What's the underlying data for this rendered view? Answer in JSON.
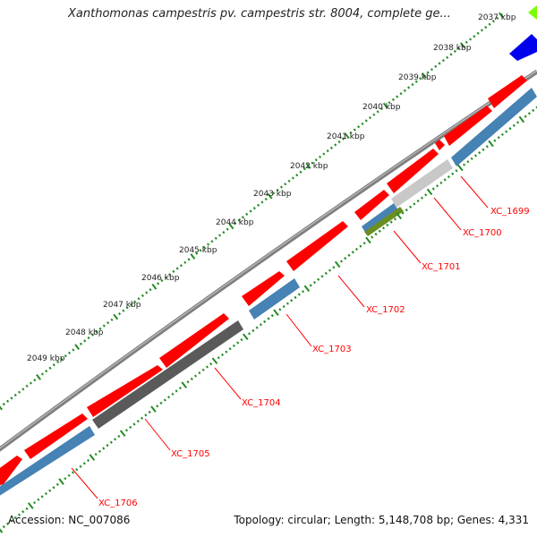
{
  "title": "Xanthomonas campestris pv. campestris str. 8004, complete ge...",
  "footer": {
    "accession": "Accession: NC_007086",
    "summary": "Topology: circular; Length: 5,148,708 bp; Genes: 4,331"
  },
  "ticks": [
    "2037 kbp",
    "2038 kbp",
    "2039 kbp",
    "2040 kbp",
    "2041 kbp",
    "2042 kbp",
    "2043 kbp",
    "2044 kbp",
    "2045 kbp",
    "2046 kbp",
    "2047 kbp",
    "2048 kbp",
    "2049 kbp"
  ],
  "gene_labels": [
    "XC_1699",
    "XC_1700",
    "XC_1701",
    "XC_1702",
    "XC_1703",
    "XC_1704",
    "XC_1705",
    "XC_1706"
  ],
  "colors": {
    "cds": "#ff0000",
    "gene_blue": "#4682b4",
    "gene_dark": "#555555",
    "gene_light": "#c8c8c8",
    "gene_green": "#6b8e23",
    "backbone": "#7f7f7f",
    "tick_green": "#228b22",
    "label_red": "#ff0000",
    "feature_blue": "#0000ee",
    "feature_lime": "#7cfc00"
  }
}
